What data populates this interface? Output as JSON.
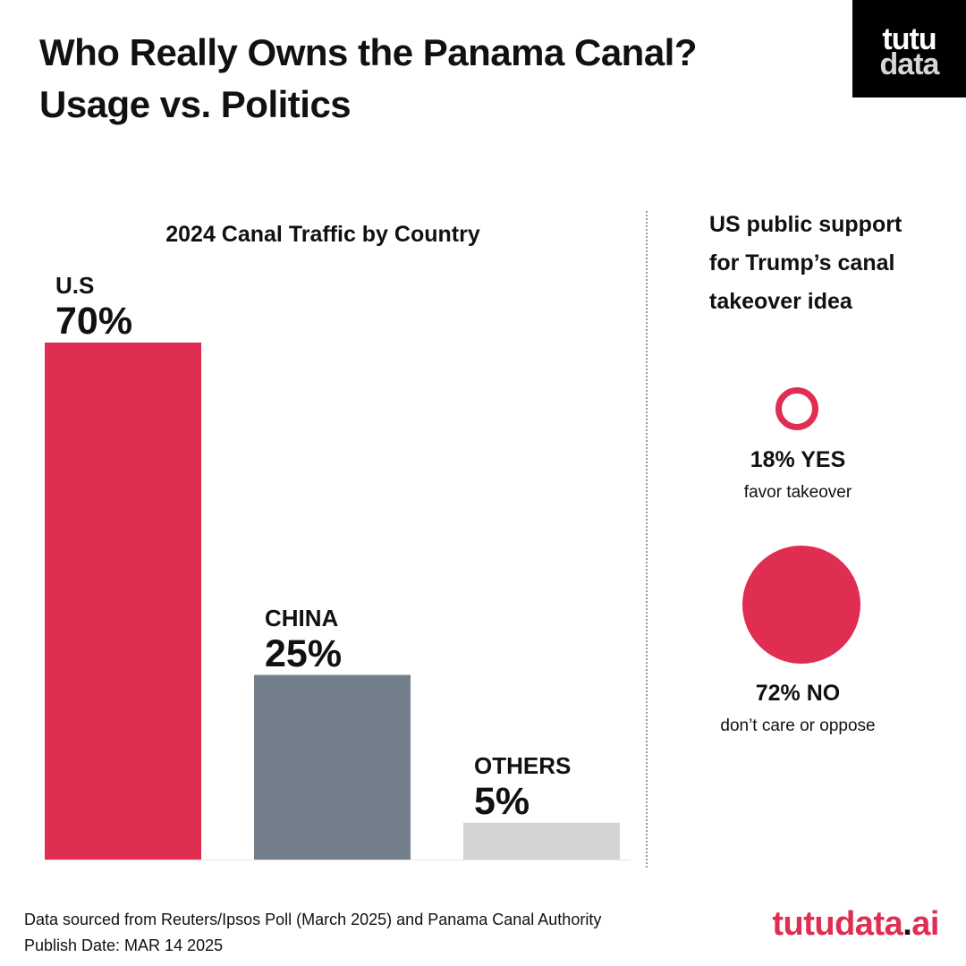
{
  "header": {
    "title_line1": "Who Really Owns the Panama Canal?",
    "title_line2": "Usage vs. Politics"
  },
  "logo": {
    "line1": "tutu",
    "line2": "data"
  },
  "chart_data": {
    "type": "bar",
    "title": "2024 Canal Traffic by Country",
    "categories": [
      "U.S",
      "CHINA",
      "OTHERS"
    ],
    "values": [
      70,
      25,
      5
    ],
    "value_labels": [
      "70%",
      "25%",
      "5%"
    ],
    "colors": [
      "#e02d52",
      "#737f8b",
      "#d4d4d4"
    ],
    "ylim": [
      0,
      70
    ],
    "grid": false
  },
  "poll": {
    "title_line1": "US public support",
    "title_line2": "for Trump’s canal",
    "title_line3": "takeover idea",
    "yes_value": "18% YES",
    "yes_desc": "favor takeover",
    "no_value": "72% NO",
    "no_desc": "don’t care or oppose",
    "accent": "#e02d52"
  },
  "footer": {
    "source": "Data sourced from Reuters/Ipsos Poll (March 2025) and Panama Canal Authority",
    "publish": "Publish Date: MAR 14 2025"
  },
  "brand": {
    "name": "tutudata",
    "dot": ".",
    "tld": "ai"
  }
}
